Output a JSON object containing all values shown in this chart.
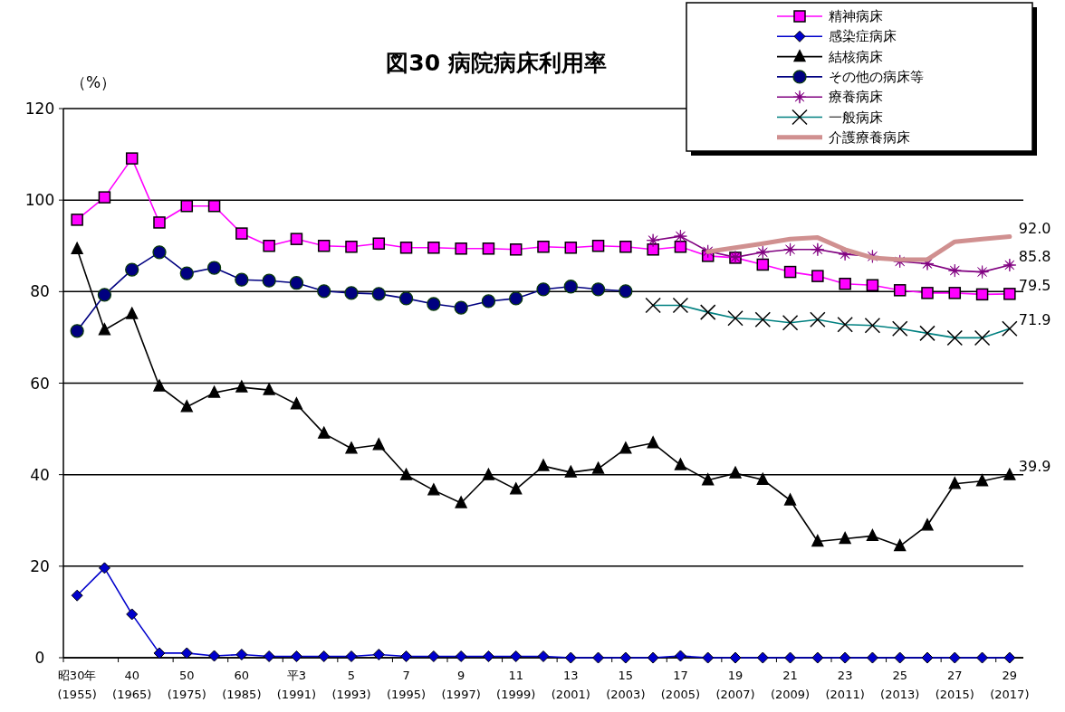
{
  "chart_data": {
    "type": "line",
    "title": "図30 病院病床利用率",
    "ylabel": "（%）",
    "categories": [
      "昭30年\n(1955)",
      null,
      "40\n(1965)",
      null,
      "50\n(1975)",
      null,
      "60\n(1985)",
      null,
      "平3\n(1991)",
      null,
      "5\n(1993)",
      null,
      "7\n(1995)",
      null,
      "9\n(1997)",
      null,
      "11\n(1999)",
      null,
      "13\n(2001)",
      null,
      "15\n(2003)",
      null,
      "17\n(2005)",
      null,
      "19\n(2007)",
      null,
      "21\n(2009)",
      null,
      "23\n(2011)",
      null,
      "25\n(2013)",
      null,
      "27\n(2015)",
      null,
      "29\n(2017)"
    ],
    "ylim": [
      0,
      120
    ],
    "yticks": [
      0,
      20,
      40,
      60,
      80,
      100,
      120
    ],
    "grid": "y",
    "legend": "top right",
    "series": [
      {
        "name": "精神病床",
        "color": "#ff00ff",
        "marker": "square",
        "values": [
          95.7,
          100.6,
          109.1,
          95.1,
          98.7,
          98.7,
          92.7,
          90.0,
          91.5,
          90.0,
          89.8,
          90.5,
          89.6,
          89.6,
          89.4,
          89.4,
          89.2,
          89.8,
          89.6,
          90.0,
          89.8,
          89.2,
          89.8,
          87.8,
          87.4,
          85.9,
          84.3,
          83.4,
          81.7,
          81.4,
          80.3,
          79.7,
          79.7,
          79.4,
          79.5
        ],
        "value_labels": [
          null,
          null,
          null,
          null,
          null,
          null,
          null,
          null,
          null,
          null,
          null,
          null,
          null,
          null,
          null,
          null,
          null,
          null,
          null,
          null,
          null,
          null,
          null,
          null,
          null,
          null,
          null,
          null,
          null,
          null,
          null,
          null,
          null,
          null,
          "79.5"
        ]
      },
      {
        "name": "感染症病床",
        "color": "#0000cc",
        "marker": "diamond",
        "values": [
          13.6,
          19.6,
          9.5,
          1.0,
          1.0,
          0.4,
          0.7,
          0.3,
          0.3,
          0.3,
          0.3,
          0.7,
          0.3,
          0.3,
          0.3,
          0.3,
          0.3,
          0.3,
          0,
          0,
          0,
          0,
          0.4,
          0,
          0,
          0,
          0,
          0,
          0,
          0,
          0,
          0,
          0,
          0,
          0
        ]
      },
      {
        "name": "結核病床",
        "color": "#000000",
        "marker": "triangle",
        "values": [
          89.3,
          71.6,
          75.1,
          59.3,
          54.8,
          57.9,
          59.1,
          58.5,
          55.4,
          49.0,
          45.7,
          46.5,
          39.9,
          36.6,
          33.8,
          39.9,
          36.8,
          41.9,
          40.5,
          41.3,
          45.7,
          46.9,
          42.1,
          38.8,
          40.3,
          38.9,
          34.4,
          25.4,
          26.0,
          26.6,
          24.4,
          28.9,
          38.0,
          38.6,
          39.9
        ],
        "value_labels": [
          null,
          null,
          null,
          null,
          null,
          null,
          null,
          null,
          null,
          null,
          null,
          null,
          null,
          null,
          null,
          null,
          null,
          null,
          null,
          null,
          null,
          null,
          null,
          null,
          null,
          null,
          null,
          null,
          null,
          null,
          null,
          null,
          null,
          null,
          "39.9"
        ]
      },
      {
        "name": "その他の病床等",
        "color": "#000080",
        "marker": "circle",
        "values": [
          71.4,
          79.3,
          84.8,
          88.6,
          84.0,
          85.2,
          82.6,
          82.4,
          81.9,
          80.1,
          79.7,
          79.5,
          78.5,
          77.3,
          76.5,
          77.9,
          78.5,
          80.5,
          81.1,
          80.5,
          80.1,
          null,
          null,
          null,
          null,
          null,
          null,
          null,
          null,
          null,
          null,
          null,
          null,
          null,
          null
        ]
      },
      {
        "name": "療養病床",
        "color": "#800080",
        "marker": "star",
        "values": [
          null,
          null,
          null,
          null,
          null,
          null,
          null,
          null,
          null,
          null,
          null,
          null,
          null,
          null,
          null,
          null,
          null,
          null,
          null,
          null,
          null,
          91.2,
          92.1,
          88.8,
          87.5,
          88.6,
          89.2,
          89.2,
          88.2,
          87.7,
          86.6,
          86.1,
          84.6,
          84.3,
          85.8
        ],
        "value_labels": [
          null,
          null,
          null,
          null,
          null,
          null,
          null,
          null,
          null,
          null,
          null,
          null,
          null,
          null,
          null,
          null,
          null,
          null,
          null,
          null,
          null,
          null,
          null,
          null,
          null,
          null,
          null,
          null,
          null,
          null,
          null,
          null,
          null,
          null,
          "85.8"
        ]
      },
      {
        "name": "一般病床",
        "color": "#008080",
        "marker": "cross",
        "values": [
          null,
          null,
          null,
          null,
          null,
          null,
          null,
          null,
          null,
          null,
          null,
          null,
          null,
          null,
          null,
          null,
          null,
          null,
          null,
          null,
          null,
          77.0,
          77.0,
          75.5,
          74.2,
          73.9,
          73.2,
          73.9,
          72.8,
          72.6,
          71.9,
          70.9,
          69.9,
          69.9,
          71.9
        ],
        "value_labels": [
          null,
          null,
          null,
          null,
          null,
          null,
          null,
          null,
          null,
          null,
          null,
          null,
          null,
          null,
          null,
          null,
          null,
          null,
          null,
          null,
          null,
          null,
          null,
          null,
          null,
          null,
          null,
          null,
          null,
          null,
          null,
          null,
          null,
          null,
          "71.9"
        ]
      },
      {
        "name": "介護療養病床",
        "color": "#d09090",
        "marker": "none",
        "values": [
          null,
          null,
          null,
          null,
          null,
          null,
          null,
          null,
          null,
          null,
          null,
          null,
          null,
          null,
          null,
          null,
          null,
          null,
          null,
          null,
          null,
          null,
          null,
          88.7,
          89.6,
          90.5,
          91.5,
          91.8,
          89.2,
          87.4,
          87.0,
          87.0,
          90.9,
          91.5,
          92.0
        ],
        "value_labels": [
          null,
          null,
          null,
          null,
          null,
          null,
          null,
          null,
          null,
          null,
          null,
          null,
          null,
          null,
          null,
          null,
          null,
          null,
          null,
          null,
          null,
          null,
          null,
          null,
          null,
          null,
          null,
          null,
          null,
          null,
          null,
          null,
          null,
          null,
          "92.0"
        ]
      }
    ]
  }
}
